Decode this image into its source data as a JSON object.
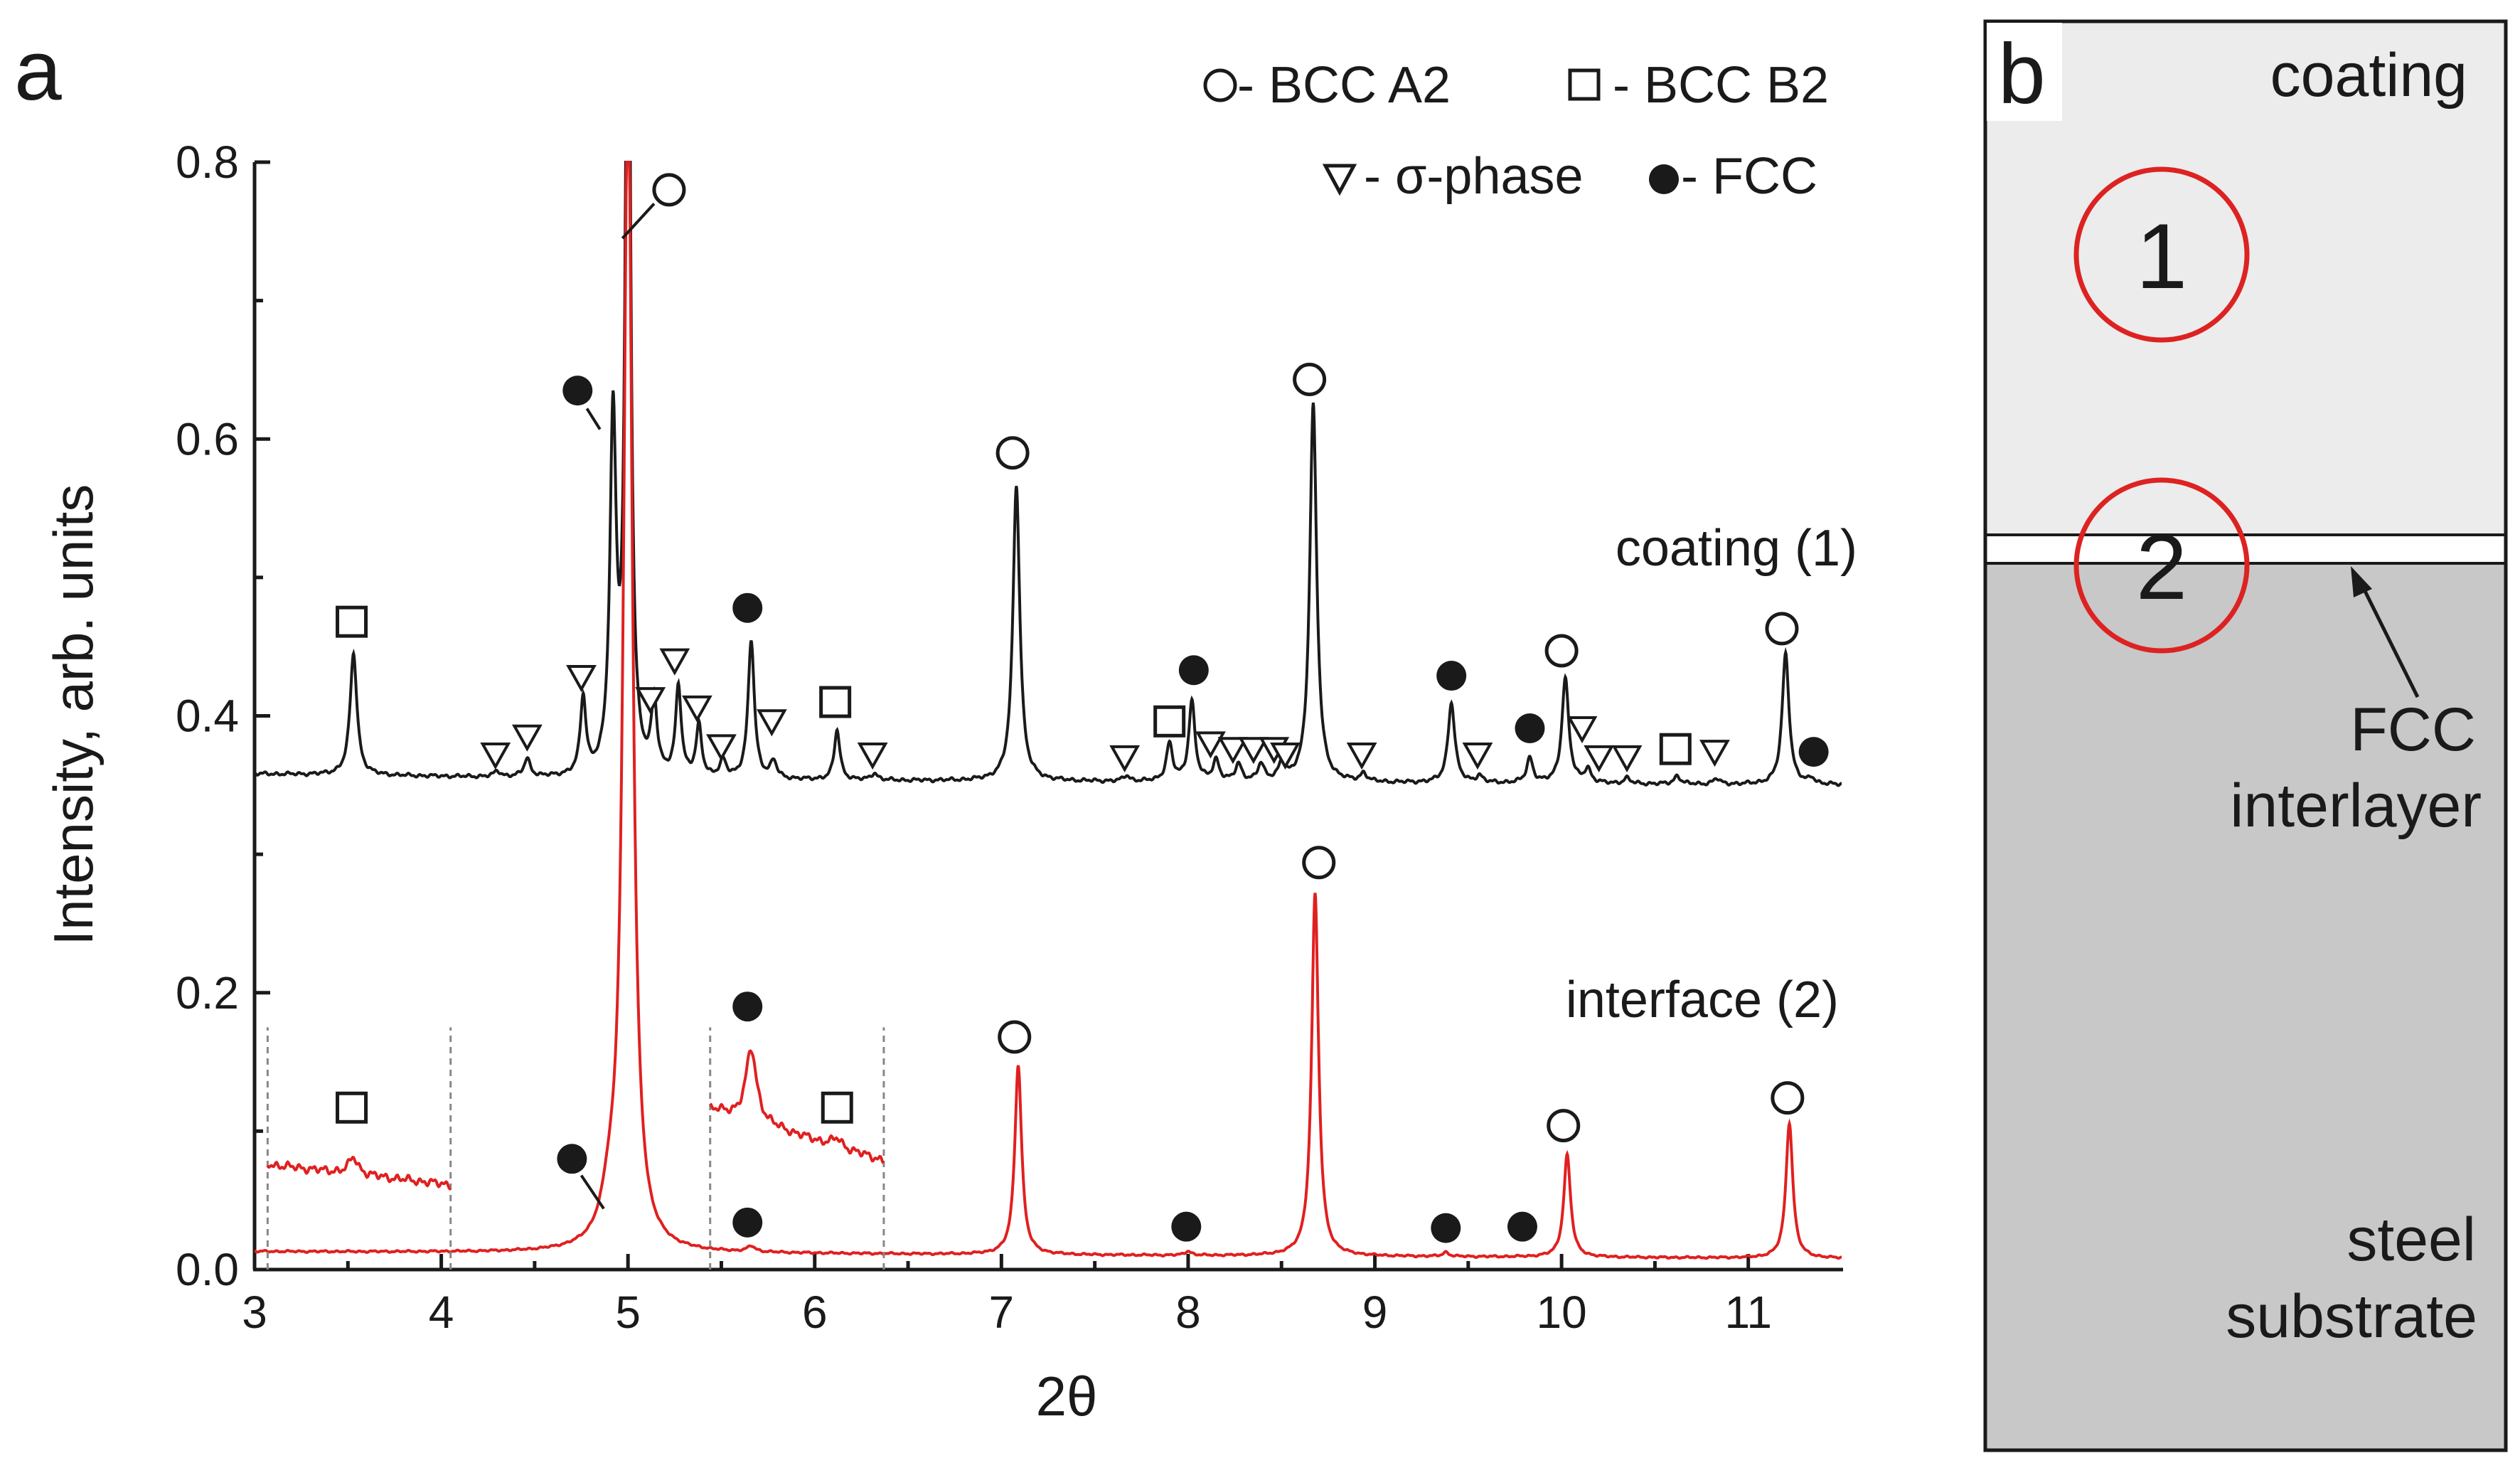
{
  "chart_data": {
    "type": "line",
    "panel_a_label": "a",
    "panel_b_label": "b",
    "xlabel": "2θ",
    "ylabel": "Intensity, arb. units",
    "xlim": [
      3,
      11.5
    ],
    "ylim": [
      0,
      0.8
    ],
    "x_ticks": [
      3,
      4,
      5,
      6,
      7,
      8,
      9,
      10,
      11
    ],
    "y_ticks": [
      "0.0",
      "0.2",
      "0.4",
      "0.6",
      "0.8"
    ],
    "legend": [
      {
        "marker": "open-circle",
        "text": "- BCC A2"
      },
      {
        "marker": "open-square",
        "text": "- BCC B2"
      },
      {
        "marker": "open-triangle-down",
        "text": "- σ-phase"
      },
      {
        "marker": "filled-circle",
        "text": "- FCC"
      }
    ],
    "series": [
      {
        "name": "coating (1)",
        "color": "#1a1a1a",
        "baseline": [
          [
            3,
            0.358
          ],
          [
            5,
            0.354
          ],
          [
            8,
            0.352
          ],
          [
            11.5,
            0.35
          ]
        ],
        "peaks": [
          {
            "x": 3.53,
            "h": 0.088,
            "w": 0.022
          },
          {
            "x": 4.3,
            "h": 0.004,
            "w": 0.02
          },
          {
            "x": 4.46,
            "h": 0.013,
            "w": 0.02
          },
          {
            "x": 4.76,
            "h": 0.055,
            "w": 0.018
          },
          {
            "x": 4.92,
            "h": 0.252,
            "w": 0.02
          },
          {
            "x": 5.0,
            "h": 0.7,
            "w": 0.016
          },
          {
            "x": 5.14,
            "h": 0.052,
            "w": 0.018
          },
          {
            "x": 5.27,
            "h": 0.065,
            "w": 0.018
          },
          {
            "x": 5.38,
            "h": 0.037,
            "w": 0.018
          },
          {
            "x": 5.51,
            "h": 0.012,
            "w": 0.02
          },
          {
            "x": 5.66,
            "h": 0.1,
            "w": 0.02
          },
          {
            "x": 5.78,
            "h": 0.012,
            "w": 0.02
          },
          {
            "x": 6.12,
            "h": 0.036,
            "w": 0.018
          },
          {
            "x": 6.32,
            "h": 0.005,
            "w": 0.02
          },
          {
            "x": 7.08,
            "h": 0.214,
            "w": 0.022
          },
          {
            "x": 7.67,
            "h": 0.004,
            "w": 0.02
          },
          {
            "x": 7.9,
            "h": 0.027,
            "w": 0.02
          },
          {
            "x": 8.02,
            "h": 0.058,
            "w": 0.02
          },
          {
            "x": 8.15,
            "h": 0.015,
            "w": 0.02
          },
          {
            "x": 8.27,
            "h": 0.012,
            "w": 0.02
          },
          {
            "x": 8.39,
            "h": 0.012,
            "w": 0.02
          },
          {
            "x": 8.5,
            "h": 0.012,
            "w": 0.02
          },
          {
            "x": 8.67,
            "h": 0.273,
            "w": 0.022
          },
          {
            "x": 8.94,
            "h": 0.006,
            "w": 0.02
          },
          {
            "x": 9.41,
            "h": 0.058,
            "w": 0.022
          },
          {
            "x": 9.56,
            "h": 0.005,
            "w": 0.02
          },
          {
            "x": 9.83,
            "h": 0.018,
            "w": 0.02
          },
          {
            "x": 10.02,
            "h": 0.076,
            "w": 0.022
          },
          {
            "x": 10.14,
            "h": 0.01,
            "w": 0.02
          },
          {
            "x": 10.35,
            "h": 0.004,
            "w": 0.02
          },
          {
            "x": 10.62,
            "h": 0.006,
            "w": 0.02
          },
          {
            "x": 10.83,
            "h": 0.004,
            "w": 0.02
          },
          {
            "x": 11.2,
            "h": 0.095,
            "w": 0.022
          },
          {
            "x": 11.34,
            "h": 0.004,
            "w": 0.02
          }
        ],
        "markers": [
          {
            "type": "open-square",
            "x": 3.52,
            "y": 0.468
          },
          {
            "type": "open-triangle-down",
            "x": 4.29,
            "y": 0.372
          },
          {
            "type": "open-triangle-down",
            "x": 4.46,
            "y": 0.385
          },
          {
            "type": "open-triangle-down",
            "x": 4.75,
            "y": 0.428
          },
          {
            "type": "filled-circle",
            "x": 4.73,
            "y": 0.635
          },
          {
            "type": "open-triangle-down",
            "x": 5.12,
            "y": 0.412
          },
          {
            "type": "open-triangle-down",
            "x": 5.25,
            "y": 0.44
          },
          {
            "type": "open-triangle-down",
            "x": 5.37,
            "y": 0.406
          },
          {
            "type": "open-triangle-down",
            "x": 5.5,
            "y": 0.378
          },
          {
            "type": "filled-circle",
            "x": 5.64,
            "y": 0.478
          },
          {
            "type": "open-triangle-down",
            "x": 5.77,
            "y": 0.396
          },
          {
            "type": "open-square",
            "x": 6.11,
            "y": 0.41
          },
          {
            "type": "open-triangle-down",
            "x": 6.31,
            "y": 0.372
          },
          {
            "type": "open-circle",
            "x": 7.06,
            "y": 0.59
          },
          {
            "type": "open-circle",
            "x": 5.22,
            "y": 0.78
          },
          {
            "type": "open-triangle-down",
            "x": 7.66,
            "y": 0.37
          },
          {
            "type": "open-square",
            "x": 7.9,
            "y": 0.396
          },
          {
            "type": "filled-circle",
            "x": 8.03,
            "y": 0.433
          },
          {
            "type": "open-triangle-down",
            "x": 8.12,
            "y": 0.38
          },
          {
            "type": "open-triangle-down",
            "x": 8.24,
            "y": 0.376
          },
          {
            "type": "open-triangle-down",
            "x": 8.35,
            "y": 0.376
          },
          {
            "type": "open-triangle-down",
            "x": 8.46,
            "y": 0.376
          },
          {
            "type": "open-triangle-down",
            "x": 8.52,
            "y": 0.372
          },
          {
            "type": "open-circle",
            "x": 8.65,
            "y": 0.643
          },
          {
            "type": "open-triangle-down",
            "x": 8.93,
            "y": 0.372
          },
          {
            "type": "filled-circle",
            "x": 9.41,
            "y": 0.429
          },
          {
            "type": "open-triangle-down",
            "x": 9.55,
            "y": 0.372
          },
          {
            "type": "filled-circle",
            "x": 9.83,
            "y": 0.391
          },
          {
            "type": "open-circle",
            "x": 10.0,
            "y": 0.447
          },
          {
            "type": "open-triangle-down",
            "x": 10.11,
            "y": 0.391
          },
          {
            "type": "open-triangle-down",
            "x": 10.2,
            "y": 0.37
          },
          {
            "type": "open-triangle-down",
            "x": 10.35,
            "y": 0.37
          },
          {
            "type": "open-square",
            "x": 10.61,
            "y": 0.376
          },
          {
            "type": "open-triangle-down",
            "x": 10.82,
            "y": 0.374
          },
          {
            "type": "open-circle",
            "x": 11.18,
            "y": 0.463
          },
          {
            "type": "filled-circle",
            "x": 11.35,
            "y": 0.374
          }
        ],
        "leaders": [
          [
            [
              4.78,
              0.622
            ],
            [
              4.85,
              0.607
            ]
          ],
          [
            [
              5.14,
              0.77
            ],
            [
              4.97,
              0.745
            ]
          ]
        ]
      },
      {
        "name": "interface (2)",
        "color": "#e02020",
        "baseline": [
          [
            3,
            0.013
          ],
          [
            5,
            0.012
          ],
          [
            8,
            0.01
          ],
          [
            11.5,
            0.008
          ]
        ],
        "peaks": [
          {
            "x": 4.9,
            "h": 0.025,
            "w": 0.05
          },
          {
            "x": 5.0,
            "h": 0.86,
            "w": 0.028
          },
          {
            "x": 5.66,
            "h": 0.004,
            "w": 0.025
          },
          {
            "x": 7.09,
            "h": 0.137,
            "w": 0.022
          },
          {
            "x": 8.0,
            "h": 0.003,
            "w": 0.02
          },
          {
            "x": 8.68,
            "h": 0.262,
            "w": 0.022
          },
          {
            "x": 9.38,
            "h": 0.003,
            "w": 0.02
          },
          {
            "x": 10.03,
            "h": 0.074,
            "w": 0.022
          },
          {
            "x": 11.22,
            "h": 0.098,
            "w": 0.022
          }
        ],
        "markers": [
          {
            "type": "filled-circle",
            "x": 4.7,
            "y": 0.08
          },
          {
            "type": "filled-circle",
            "x": 5.64,
            "y": 0.034
          },
          {
            "type": "open-circle",
            "x": 7.07,
            "y": 0.168
          },
          {
            "type": "filled-circle",
            "x": 7.99,
            "y": 0.031
          },
          {
            "type": "open-circle",
            "x": 8.7,
            "y": 0.294
          },
          {
            "type": "filled-circle",
            "x": 9.38,
            "y": 0.03
          },
          {
            "type": "filled-circle",
            "x": 9.79,
            "y": 0.031
          },
          {
            "type": "open-circle",
            "x": 10.01,
            "y": 0.104
          },
          {
            "type": "open-circle",
            "x": 11.21,
            "y": 0.124
          }
        ],
        "leaders": [
          [
            [
              4.75,
              0.068
            ],
            [
              4.87,
              0.044
            ]
          ]
        ]
      }
    ],
    "insets": [
      {
        "x_range": [
          3.07,
          4.05
        ],
        "baseline_y": 0.076,
        "slope": -0.015,
        "peaks": [
          {
            "x": 3.53,
            "h": 0.012,
            "w": 0.03
          }
        ],
        "markers": [
          {
            "type": "open-square",
            "x": 3.52,
            "y": 0.117
          }
        ]
      },
      {
        "x_range": [
          5.44,
          6.37
        ],
        "baseline_y": 0.116,
        "slope": -0.04,
        "peaks": [
          {
            "x": 5.66,
            "h": 0.052,
            "w": 0.035
          },
          {
            "x": 6.12,
            "h": 0.006,
            "w": 0.03
          }
        ],
        "markers": [
          {
            "type": "filled-circle",
            "x": 5.64,
            "y": 0.19
          },
          {
            "type": "open-square",
            "x": 6.12,
            "y": 0.117
          }
        ]
      }
    ]
  },
  "panel_b": {
    "coating_label": "coating",
    "circle_1": "1",
    "circle_2": "2",
    "interlayer_label_1": "FCC",
    "interlayer_label_2": "interlayer",
    "substrate_label_1": "steel",
    "substrate_label_2": "substrate",
    "colors": {
      "coating_fill": "#ececec",
      "substrate_fill": "#c8c8c8",
      "circle_stroke": "#dd2222"
    }
  }
}
